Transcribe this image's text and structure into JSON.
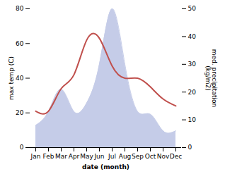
{
  "chart_data": {
    "type": "line",
    "categories": [
      "Jan",
      "Feb",
      "Mar",
      "Apr",
      "May",
      "Jun",
      "Jul",
      "Aug",
      "Sep",
      "Oct",
      "Nov",
      "Dec"
    ],
    "xlabel": "date (month)",
    "ylabel": "max temp (C)",
    "y2label": "med. precipitation\n(kg/m2)",
    "ylim": [
      0,
      80
    ],
    "yticks": [
      0,
      20,
      40,
      60,
      80
    ],
    "y2lim": [
      0,
      50
    ],
    "y2ticks": [
      0,
      10,
      20,
      30,
      40,
      50
    ],
    "series": [
      {
        "type": "area",
        "axis": "y2",
        "color": "#c5cce8",
        "values": [
          8,
          13,
          21,
          13,
          16,
          30,
          50,
          30,
          13,
          12,
          6,
          6
        ]
      },
      {
        "type": "line",
        "color": "#c0504d",
        "values": [
          21,
          21,
          34,
          42,
          62,
          63,
          47,
          40,
          40,
          35,
          28,
          24
        ]
      }
    ]
  }
}
